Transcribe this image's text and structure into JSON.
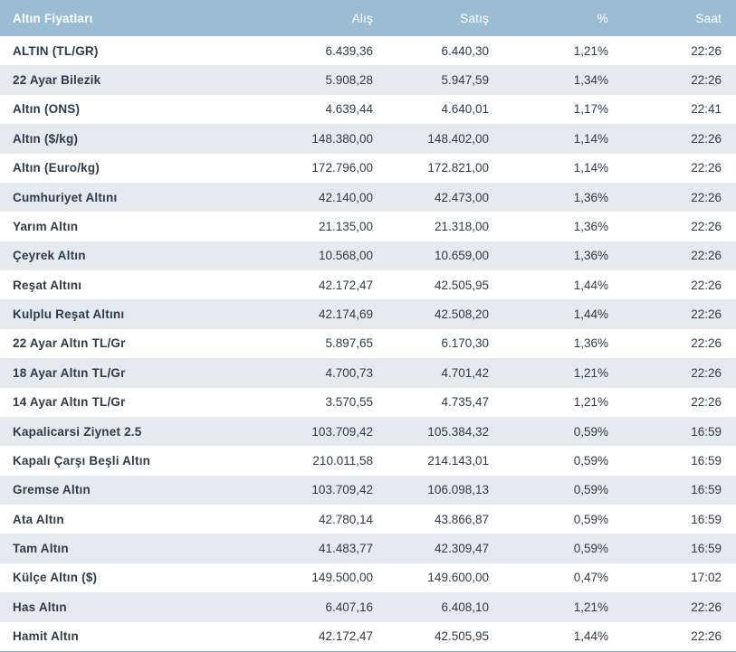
{
  "colors": {
    "header_bg": "#9abdd3",
    "header_text": "#ffffff",
    "row_alt_bg": "#e4eaee",
    "row_bg": "#ffffff",
    "text": "#2d3c4b",
    "bottom_line": "#86abc8"
  },
  "table": {
    "columns": [
      "Altın Fiyatları",
      "Alış",
      "Satış",
      "%",
      "Saat"
    ],
    "rows": [
      {
        "name": "ALTIN (TL/GR)",
        "alis": "6.439,36",
        "satis": "6.440,30",
        "pct": "1,21%",
        "saat": "22:26"
      },
      {
        "name": "22 Ayar Bilezik",
        "alis": "5.908,28",
        "satis": "5.947,59",
        "pct": "1,34%",
        "saat": "22:26"
      },
      {
        "name": "Altın (ONS)",
        "alis": "4.639,44",
        "satis": "4.640,01",
        "pct": "1,17%",
        "saat": "22:41"
      },
      {
        "name": "Altın ($/kg)",
        "alis": "148.380,00",
        "satis": "148.402,00",
        "pct": "1,14%",
        "saat": "22:26"
      },
      {
        "name": "Altın (Euro/kg)",
        "alis": "172.796,00",
        "satis": "172.821,00",
        "pct": "1,14%",
        "saat": "22:26"
      },
      {
        "name": "Cumhuriyet Altını",
        "alis": "42.140,00",
        "satis": "42.473,00",
        "pct": "1,36%",
        "saat": "22:26"
      },
      {
        "name": "Yarım Altın",
        "alis": "21.135,00",
        "satis": "21.318,00",
        "pct": "1,36%",
        "saat": "22:26"
      },
      {
        "name": "Çeyrek Altın",
        "alis": "10.568,00",
        "satis": "10.659,00",
        "pct": "1,36%",
        "saat": "22:26"
      },
      {
        "name": "Reşat Altını",
        "alis": "42.172,47",
        "satis": "42.505,95",
        "pct": "1,44%",
        "saat": "22:26"
      },
      {
        "name": "Kulplu Reşat Altını",
        "alis": "42.174,69",
        "satis": "42.508,20",
        "pct": "1,44%",
        "saat": "22:26"
      },
      {
        "name": "22 Ayar Altın TL/Gr",
        "alis": "5.897,65",
        "satis": "6.170,30",
        "pct": "1,36%",
        "saat": "22:26"
      },
      {
        "name": "18 Ayar Altın TL/Gr",
        "alis": "4.700,73",
        "satis": "4.701,42",
        "pct": "1,21%",
        "saat": "22:26"
      },
      {
        "name": "14 Ayar Altın TL/Gr",
        "alis": "3.570,55",
        "satis": "4.735,47",
        "pct": "1,21%",
        "saat": "22:26"
      },
      {
        "name": "Kapalicarsi Ziynet 2.5",
        "alis": "103.709,42",
        "satis": "105.384,32",
        "pct": "0,59%",
        "saat": "16:59"
      },
      {
        "name": "Kapalı Çarşı Beşli Altın",
        "alis": "210.011,58",
        "satis": "214.143,01",
        "pct": "0,59%",
        "saat": "16:59"
      },
      {
        "name": "Gremse Altın",
        "alis": "103.709,42",
        "satis": "106.098,13",
        "pct": "0,59%",
        "saat": "16:59"
      },
      {
        "name": "Ata Altın",
        "alis": "42.780,14",
        "satis": "43.866,87",
        "pct": "0,59%",
        "saat": "16:59"
      },
      {
        "name": "Tam Altın",
        "alis": "41.483,77",
        "satis": "42.309,47",
        "pct": "0,59%",
        "saat": "16:59"
      },
      {
        "name": "Külçe Altın ($)",
        "alis": "149.500,00",
        "satis": "149.600,00",
        "pct": "0,47%",
        "saat": "17:02"
      },
      {
        "name": "Has Altın",
        "alis": "6.407,16",
        "satis": "6.408,10",
        "pct": "1,21%",
        "saat": "22:26"
      },
      {
        "name": "Hamit Altın",
        "alis": "42.172,47",
        "satis": "42.505,95",
        "pct": "1,44%",
        "saat": "22:26"
      }
    ]
  }
}
